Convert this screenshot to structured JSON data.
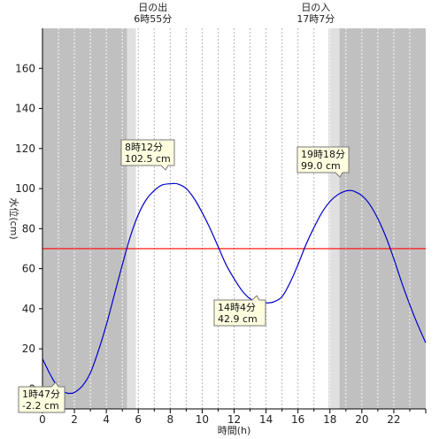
{
  "chart_data": {
    "type": "line",
    "xlabel": "時間(h)",
    "ylabel": "水位(cm)",
    "xlim": [
      0,
      24
    ],
    "ylim": [
      -10,
      180
    ],
    "x_ticks": [
      0,
      2,
      4,
      6,
      8,
      10,
      12,
      14,
      16,
      18,
      20,
      22
    ],
    "y_ticks": [
      0,
      20,
      40,
      60,
      80,
      100,
      120,
      140,
      160
    ],
    "threshold": {
      "value": 70,
      "color": "#ff0000"
    },
    "line_color": "#0000cc",
    "sun_events": [
      {
        "id": "sunrise",
        "title": "日の出",
        "time_label": "6時55分",
        "hour": 6.917
      },
      {
        "id": "sunset",
        "title": "日の入",
        "time_label": "17時7分",
        "hour": 17.117
      }
    ],
    "shading": {
      "night_color": "#c0c0c0",
      "twilight_color": "#e0e0e0",
      "day_color": "#ffffff",
      "night_end": 5.3,
      "twilight_morning_end": 5.85,
      "twilight_evening_start": 17.9,
      "night_start": 18.6
    },
    "series": [
      {
        "points": [
          [
            0,
            15
          ],
          [
            0.5,
            7
          ],
          [
            1.0,
            0.5
          ],
          [
            1.5,
            -2.0
          ],
          [
            1.78,
            -2.2
          ],
          [
            2.0,
            -1.8
          ],
          [
            2.5,
            1.5
          ],
          [
            3.0,
            8
          ],
          [
            3.5,
            19
          ],
          [
            4.0,
            32
          ],
          [
            4.5,
            47
          ],
          [
            5.0,
            62
          ],
          [
            5.5,
            76
          ],
          [
            6.0,
            87
          ],
          [
            6.5,
            94.5
          ],
          [
            7.0,
            99
          ],
          [
            7.5,
            101.8
          ],
          [
            8.2,
            102.5
          ],
          [
            8.5,
            102.2
          ],
          [
            9.0,
            100
          ],
          [
            9.5,
            95
          ],
          [
            10.0,
            88
          ],
          [
            10.5,
            80
          ],
          [
            11.0,
            71
          ],
          [
            11.5,
            62
          ],
          [
            12.0,
            55
          ],
          [
            12.5,
            49
          ],
          [
            13.0,
            45
          ],
          [
            13.5,
            43.3
          ],
          [
            14.07,
            42.9
          ],
          [
            14.5,
            43.5
          ],
          [
            15.0,
            46
          ],
          [
            15.5,
            53
          ],
          [
            16.0,
            62
          ],
          [
            16.5,
            72
          ],
          [
            17.0,
            80.5
          ],
          [
            17.5,
            88
          ],
          [
            18.0,
            93.5
          ],
          [
            18.5,
            97
          ],
          [
            19.0,
            98.8
          ],
          [
            19.3,
            99.0
          ],
          [
            19.5,
            98.7
          ],
          [
            20.0,
            96.5
          ],
          [
            20.5,
            92
          ],
          [
            21.0,
            85
          ],
          [
            21.5,
            76
          ],
          [
            22.0,
            65
          ],
          [
            22.5,
            53
          ],
          [
            23.0,
            42
          ],
          [
            23.5,
            32
          ],
          [
            24.0,
            23
          ]
        ]
      }
    ],
    "annotations": [
      {
        "id": "high-1",
        "time_label": "8時12分",
        "value_label": "102.5 cm",
        "x": 8.2,
        "y": 102.5
      },
      {
        "id": "low-1",
        "time_label": "14時4分",
        "value_label": "42.9 cm",
        "x": 14.07,
        "y": 42.9
      },
      {
        "id": "high-2",
        "time_label": "19時18分",
        "value_label": "99.0 cm",
        "x": 19.3,
        "y": 99.0
      },
      {
        "id": "low-0",
        "time_label": "1時47分",
        "value_label": "-2.2 cm",
        "x": 1.78,
        "y": -2.2
      }
    ]
  }
}
